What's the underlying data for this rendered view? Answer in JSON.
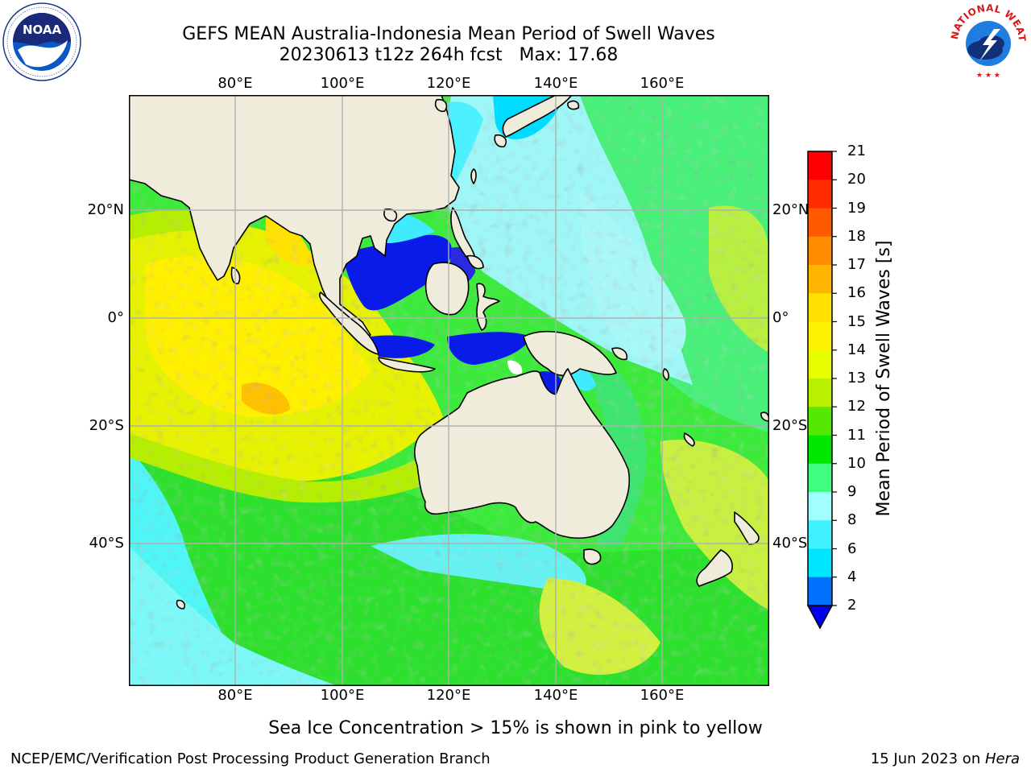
{
  "header": {
    "title_line1": "GEFS MEAN Australia-Indonesia Mean Period of Swell Waves",
    "title_line2": "20230613 t12z 264h fcst   Max: 17.68"
  },
  "logos": {
    "left": {
      "text": "NOAA",
      "ring_text": "NATIONAL OCEANIC AND ATMOSPHERIC ADMINISTRATION · U.S. DEPARTMENT OF COMMERCE"
    },
    "right": {
      "ring_text": "NATIONAL WEATHER SERVICE"
    }
  },
  "map": {
    "lon_ticks": [
      "80°E",
      "100°E",
      "120°E",
      "140°E",
      "160°E"
    ],
    "lat_ticks": [
      "20°N",
      "0°",
      "20°S",
      "40°S"
    ],
    "land_color": "#efecdc",
    "grid_color": "#b0b0b0"
  },
  "colorbar": {
    "label": "Mean Period of Swell Waves [s]",
    "ticks": [
      "2",
      "4",
      "6",
      "8",
      "9",
      "10",
      "11",
      "12",
      "13",
      "14",
      "15",
      "16",
      "17",
      "18",
      "19",
      "20",
      "21"
    ],
    "colors": [
      "#0000ee",
      "#0070ff",
      "#00e5ff",
      "#40f0ff",
      "#a0ffff",
      "#40ff80",
      "#00e800",
      "#55e800",
      "#b8f000",
      "#e8ff00",
      "#fff200",
      "#ffe000",
      "#ffb400",
      "#ff8c00",
      "#ff5a00",
      "#ff2a00",
      "#ff0000"
    ],
    "extend": "min"
  },
  "notes": {
    "sea_ice": "Sea Ice Concentration > 15% is shown in pink to yellow"
  },
  "footer": {
    "left": "NCEP/EMC/Verification Post Processing Product Generation Branch",
    "date": "15 Jun 2023 on ",
    "machine": "Hera"
  }
}
